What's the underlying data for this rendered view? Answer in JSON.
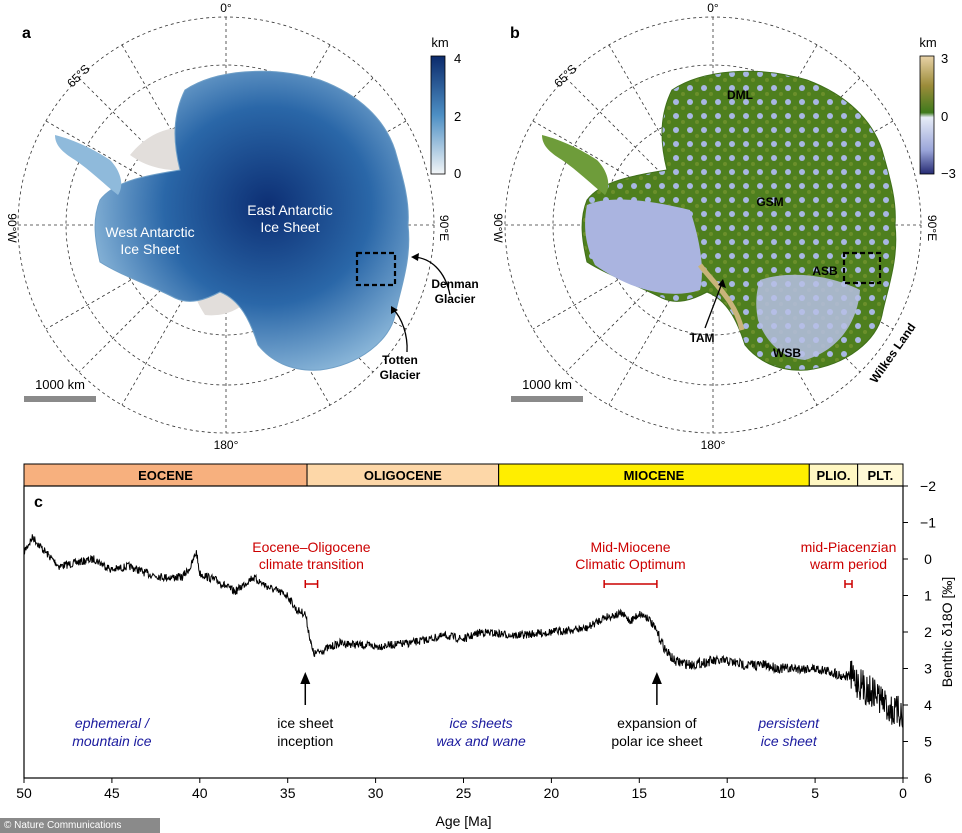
{
  "panel_a": {
    "letter": "a",
    "lat_label": "65°S",
    "top_meridian": "0°",
    "bottom_meridian": "180°",
    "left_meridian": "90°W",
    "right_meridian": "90°E",
    "region_west": [
      "West Antarctic",
      "Ice Sheet"
    ],
    "region_east": [
      "East Antarctic",
      "Ice Sheet"
    ],
    "glacier_denman": [
      "Denman",
      "Glacier"
    ],
    "glacier_totten": [
      "Totten",
      "Glacier"
    ],
    "scale_bar": "1000 km",
    "colorbar": {
      "unit": "km",
      "ticks": [
        "4",
        "2",
        "0"
      ],
      "top_color": "#0b2a6b",
      "bottom_color": "#f2f5f7"
    }
  },
  "panel_b": {
    "letter": "b",
    "lat_label": "65°S",
    "top_meridian": "0°",
    "bottom_meridian": "180°",
    "left_meridian": "90°W",
    "right_meridian": "90°E",
    "labels": {
      "dml": "DML",
      "gsm": "GSM",
      "asb": "ASB",
      "tam": "TAM",
      "wsb": "WSB",
      "wilkes": "Wilkes Land"
    },
    "scale_bar": "1000 km",
    "colorbar": {
      "unit": "km",
      "ticks": [
        "3",
        "0",
        "−3"
      ]
    }
  },
  "panel_c": {
    "letter": "c",
    "epochs": [
      {
        "name": "EOCENE",
        "start": 56,
        "end": 33.9,
        "color": "#f7b07e"
      },
      {
        "name": "OLIGOCENE",
        "start": 33.9,
        "end": 23.0,
        "color": "#fdd7a8"
      },
      {
        "name": "MIOCENE",
        "start": 23.0,
        "end": 5.33,
        "color": "#ffee00"
      },
      {
        "name": "PLIO.",
        "start": 5.33,
        "end": 2.58,
        "color": "#fff7c2"
      },
      {
        "name": "PLT.",
        "start": 2.58,
        "end": 0,
        "color": "#fff9d6"
      }
    ],
    "events": [
      {
        "title": [
          "Eocene–Oligocene",
          "climate transition"
        ],
        "start": 34.0,
        "end": 33.3
      },
      {
        "title": [
          "Mid-Miocene",
          "Climatic Optimum"
        ],
        "start": 17.0,
        "end": 14.0
      },
      {
        "title": [
          "mid-Piacenzian",
          "warm period"
        ],
        "start": 3.3,
        "end": 2.9
      }
    ],
    "arrows": [
      {
        "age": 34,
        "label": [
          "ice sheet",
          "inception"
        ]
      },
      {
        "age": 14,
        "label": [
          "expansion of",
          "polar ice sheet"
        ]
      }
    ],
    "phases": [
      {
        "age": 45,
        "label": [
          "ephemeral /",
          "mountain ice"
        ]
      },
      {
        "age": 24,
        "label": [
          "ice sheets",
          "wax and wane"
        ]
      },
      {
        "age": 6.5,
        "label": [
          "persistent",
          "ice sheet"
        ]
      }
    ],
    "event_color": "#cc0000",
    "phase_color": "#1a1a9e"
  },
  "chart_data": {
    "type": "line",
    "xlabel": "Age [Ma]",
    "ylabel": "Benthic δ18O [‰]",
    "xlim": [
      50,
      0
    ],
    "ylim": [
      6,
      -2
    ],
    "y_inverted": true,
    "x_ticks": [
      "50",
      "45",
      "40",
      "35",
      "30",
      "25",
      "20",
      "15",
      "10",
      "5",
      "0"
    ],
    "y_ticks": [
      "−2",
      "−1",
      "0",
      "1",
      "2",
      "3",
      "4",
      "5",
      "6"
    ],
    "series": [
      {
        "x": [
          50,
          49.5,
          49,
          48,
          47,
          46,
          45,
          44,
          43,
          42,
          41,
          40.5,
          40.2,
          40,
          39,
          38,
          37.5,
          37,
          36,
          35,
          34.5,
          34,
          33.8,
          33.6,
          33.5,
          33,
          32,
          30,
          28,
          26,
          25,
          24,
          22,
          20,
          18,
          17,
          16,
          15.5,
          15,
          14.5,
          14,
          13.5,
          13,
          12,
          11,
          10,
          9,
          8,
          7,
          6,
          5,
          4,
          3.5,
          3,
          2.5,
          2,
          1.5,
          1,
          0.5,
          0
        ],
        "y": [
          -0.2,
          -0.6,
          -0.3,
          0.2,
          0.1,
          0.0,
          0.3,
          0.2,
          0.4,
          0.5,
          0.5,
          0.2,
          -0.2,
          0.4,
          0.6,
          0.9,
          0.7,
          0.5,
          0.8,
          1.0,
          1.4,
          1.5,
          2.0,
          2.5,
          2.6,
          2.5,
          2.3,
          2.4,
          2.3,
          2.1,
          2.2,
          2.0,
          2.1,
          2.0,
          1.9,
          1.6,
          1.5,
          1.7,
          1.5,
          1.6,
          2.0,
          2.5,
          2.8,
          2.9,
          2.8,
          2.8,
          2.9,
          2.9,
          3.0,
          3.0,
          3.0,
          3.1,
          3.2,
          3.2,
          3.4,
          3.6,
          3.7,
          4.0,
          4.2,
          4.2
        ]
      }
    ]
  },
  "credit": "© Nature Communications"
}
